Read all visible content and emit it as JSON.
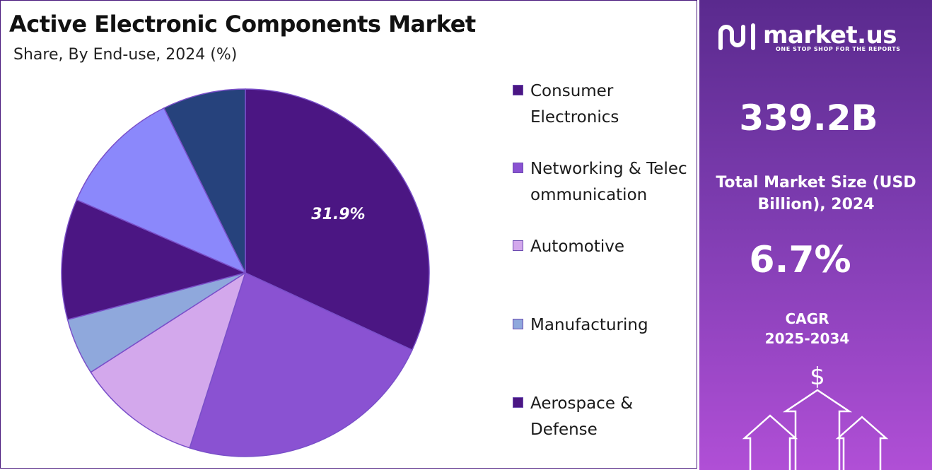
{
  "header": {
    "title": "Active Electronic Components Market",
    "subtitle": "Share, By End-use, 2024 (%)"
  },
  "chart_data": {
    "type": "pie",
    "title": "Active Electronic Components Market",
    "subtitle": "Share, By End-use, 2024 (%)",
    "categories": [
      "Consumer Electronics",
      "Networking & Telecommunication",
      "Automotive",
      "Manufacturing",
      "Aerospace & Defense"
    ],
    "colors": [
      "#4b1683",
      "#8a52d2",
      "#d3a8ec",
      "#8fa8dc",
      "#4b1683"
    ],
    "slices": [
      {
        "name": "Consumer Electronics",
        "value": 31.9,
        "color": "#4b1683",
        "label": "31.9%"
      },
      {
        "name": "Networking & Telecommunication",
        "value": 23.0,
        "color": "#8a52d2",
        "label": ""
      },
      {
        "name": "Automotive",
        "value": 11.0,
        "color": "#d3a8ec",
        "label": ""
      },
      {
        "name": "Manufacturing",
        "value": 5.0,
        "color": "#8fa8dc",
        "label": ""
      },
      {
        "name": "Aerospace & Defense",
        "value": 10.6,
        "color": "#4b1683",
        "label": ""
      },
      {
        "name": "",
        "value": 11.2,
        "color": "#8b88fb",
        "label": ""
      },
      {
        "name": "",
        "value": 7.3,
        "color": "#26427c",
        "label": ""
      }
    ],
    "legend_position": "right"
  },
  "legend": {
    "items": [
      {
        "label": "Consumer Electronics",
        "color": "#4b1683"
      },
      {
        "label": "Networking & Telecommunication",
        "color": "#8a52d2"
      },
      {
        "label": "Automotive",
        "color": "#d3a8ec"
      },
      {
        "label": "Manufacturing",
        "color": "#8fa8dc"
      },
      {
        "label": "Aerospace & Defense",
        "color": "#4b1683"
      }
    ]
  },
  "brand": {
    "name": "market.us",
    "tagline": "ONE STOP SHOP FOR THE REPORTS",
    "icon": "market-us-logo-icon"
  },
  "stats": {
    "market_size_value": "339.2B",
    "market_size_label": "Total Market Size (USD Billion), 2024",
    "cagr_value": "6.7%",
    "cagr_label_line1": "CAGR",
    "cagr_label_line2": "2025-2034"
  },
  "graphic": {
    "currency_symbol": "$",
    "icon": "growth-arrows-icon"
  }
}
